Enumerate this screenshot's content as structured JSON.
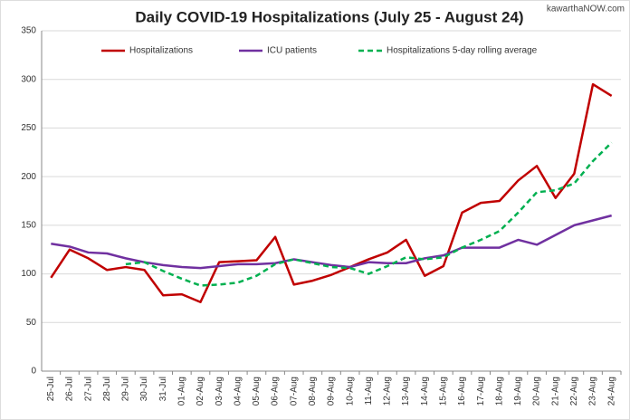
{
  "chart_data": {
    "type": "line",
    "title": "Daily COVID-19 Hospitalizations (July 25 - August 24)",
    "watermark": "kawarthaNOW.com",
    "categories": [
      "25-Jul",
      "26-Jul",
      "27-Jul",
      "28-Jul",
      "29-Jul",
      "30-Jul",
      "31-Jul",
      "01-Aug",
      "02-Aug",
      "03-Aug",
      "04-Aug",
      "05-Aug",
      "06-Aug",
      "07-Aug",
      "08-Aug",
      "09-Aug",
      "10-Aug",
      "11-Aug",
      "12-Aug",
      "13-Aug",
      "14-Aug",
      "15-Aug",
      "16-Aug",
      "17-Aug",
      "18-Aug",
      "19-Aug",
      "20-Aug",
      "21-Aug",
      "22-Aug",
      "23-Aug",
      "24-Aug"
    ],
    "series": [
      {
        "name": "Hospitalizations",
        "color": "#c00000",
        "dashed": false,
        "values": [
          96,
          125,
          116,
          104,
          107,
          104,
          78,
          79,
          71,
          112,
          113,
          114,
          138,
          89,
          93,
          99,
          107,
          115,
          122,
          135,
          98,
          108,
          163,
          173,
          175,
          196,
          211,
          178,
          203,
          295,
          283
        ]
      },
      {
        "name": "ICU patients",
        "color": "#7030a0",
        "dashed": false,
        "values": [
          131,
          128,
          122,
          121,
          116,
          112,
          109,
          107,
          106,
          108,
          110,
          110,
          111,
          115,
          112,
          109,
          107,
          112,
          111,
          111,
          116,
          119,
          127,
          127,
          127,
          135,
          130,
          140,
          150,
          155,
          160
        ]
      },
      {
        "name": "Hospitalizations 5-day rolling average",
        "color": "#00b050",
        "dashed": true,
        "values": [
          null,
          null,
          null,
          null,
          110,
          112,
          103,
          95,
          88,
          89,
          91,
          98,
          110,
          115,
          111,
          107,
          106,
          100,
          108,
          117,
          115,
          117,
          127,
          135,
          144,
          163,
          184,
          186,
          193,
          216,
          235
        ]
      }
    ],
    "ylim": [
      0,
      350
    ],
    "yticks": [
      0,
      50,
      100,
      150,
      200,
      250,
      300,
      350
    ],
    "grid": true,
    "legend": "top"
  }
}
